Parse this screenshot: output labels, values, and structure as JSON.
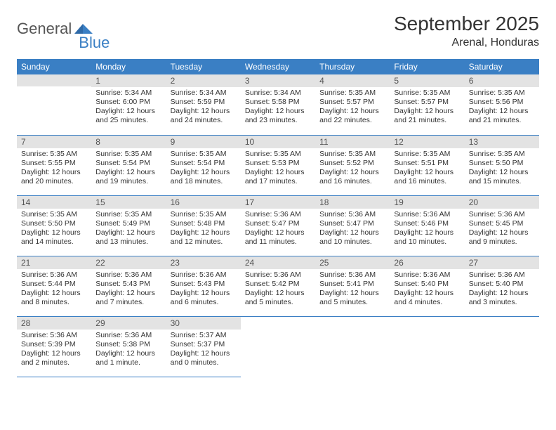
{
  "logo": {
    "text1": "General",
    "text2": "Blue"
  },
  "title": "September 2025",
  "location": "Arenal, Honduras",
  "colors": {
    "header_bg": "#3a7fc4",
    "header_text": "#ffffff",
    "daynum_bg": "#e3e3e3",
    "daynum_text": "#555555",
    "body_text": "#333333",
    "row_divider": "#3a7fc4",
    "page_bg": "#ffffff",
    "logo_gray": "#555555",
    "logo_blue": "#3a7fc4"
  },
  "typography": {
    "title_fontsize": 28,
    "location_fontsize": 16,
    "dayheader_fontsize": 12,
    "daynum_fontsize": 12,
    "body_fontsize": 10.5,
    "font_family": "Arial"
  },
  "day_headers": [
    "Sunday",
    "Monday",
    "Tuesday",
    "Wednesday",
    "Thursday",
    "Friday",
    "Saturday"
  ],
  "weeks": [
    [
      {
        "n": "",
        "sunrise": "",
        "sunset": "",
        "daylight": ""
      },
      {
        "n": "1",
        "sunrise": "Sunrise: 5:34 AM",
        "sunset": "Sunset: 6:00 PM",
        "daylight": "Daylight: 12 hours and 25 minutes."
      },
      {
        "n": "2",
        "sunrise": "Sunrise: 5:34 AM",
        "sunset": "Sunset: 5:59 PM",
        "daylight": "Daylight: 12 hours and 24 minutes."
      },
      {
        "n": "3",
        "sunrise": "Sunrise: 5:34 AM",
        "sunset": "Sunset: 5:58 PM",
        "daylight": "Daylight: 12 hours and 23 minutes."
      },
      {
        "n": "4",
        "sunrise": "Sunrise: 5:35 AM",
        "sunset": "Sunset: 5:57 PM",
        "daylight": "Daylight: 12 hours and 22 minutes."
      },
      {
        "n": "5",
        "sunrise": "Sunrise: 5:35 AM",
        "sunset": "Sunset: 5:57 PM",
        "daylight": "Daylight: 12 hours and 21 minutes."
      },
      {
        "n": "6",
        "sunrise": "Sunrise: 5:35 AM",
        "sunset": "Sunset: 5:56 PM",
        "daylight": "Daylight: 12 hours and 21 minutes."
      }
    ],
    [
      {
        "n": "7",
        "sunrise": "Sunrise: 5:35 AM",
        "sunset": "Sunset: 5:55 PM",
        "daylight": "Daylight: 12 hours and 20 minutes."
      },
      {
        "n": "8",
        "sunrise": "Sunrise: 5:35 AM",
        "sunset": "Sunset: 5:54 PM",
        "daylight": "Daylight: 12 hours and 19 minutes."
      },
      {
        "n": "9",
        "sunrise": "Sunrise: 5:35 AM",
        "sunset": "Sunset: 5:54 PM",
        "daylight": "Daylight: 12 hours and 18 minutes."
      },
      {
        "n": "10",
        "sunrise": "Sunrise: 5:35 AM",
        "sunset": "Sunset: 5:53 PM",
        "daylight": "Daylight: 12 hours and 17 minutes."
      },
      {
        "n": "11",
        "sunrise": "Sunrise: 5:35 AM",
        "sunset": "Sunset: 5:52 PM",
        "daylight": "Daylight: 12 hours and 16 minutes."
      },
      {
        "n": "12",
        "sunrise": "Sunrise: 5:35 AM",
        "sunset": "Sunset: 5:51 PM",
        "daylight": "Daylight: 12 hours and 16 minutes."
      },
      {
        "n": "13",
        "sunrise": "Sunrise: 5:35 AM",
        "sunset": "Sunset: 5:50 PM",
        "daylight": "Daylight: 12 hours and 15 minutes."
      }
    ],
    [
      {
        "n": "14",
        "sunrise": "Sunrise: 5:35 AM",
        "sunset": "Sunset: 5:50 PM",
        "daylight": "Daylight: 12 hours and 14 minutes."
      },
      {
        "n": "15",
        "sunrise": "Sunrise: 5:35 AM",
        "sunset": "Sunset: 5:49 PM",
        "daylight": "Daylight: 12 hours and 13 minutes."
      },
      {
        "n": "16",
        "sunrise": "Sunrise: 5:35 AM",
        "sunset": "Sunset: 5:48 PM",
        "daylight": "Daylight: 12 hours and 12 minutes."
      },
      {
        "n": "17",
        "sunrise": "Sunrise: 5:36 AM",
        "sunset": "Sunset: 5:47 PM",
        "daylight": "Daylight: 12 hours and 11 minutes."
      },
      {
        "n": "18",
        "sunrise": "Sunrise: 5:36 AM",
        "sunset": "Sunset: 5:47 PM",
        "daylight": "Daylight: 12 hours and 10 minutes."
      },
      {
        "n": "19",
        "sunrise": "Sunrise: 5:36 AM",
        "sunset": "Sunset: 5:46 PM",
        "daylight": "Daylight: 12 hours and 10 minutes."
      },
      {
        "n": "20",
        "sunrise": "Sunrise: 5:36 AM",
        "sunset": "Sunset: 5:45 PM",
        "daylight": "Daylight: 12 hours and 9 minutes."
      }
    ],
    [
      {
        "n": "21",
        "sunrise": "Sunrise: 5:36 AM",
        "sunset": "Sunset: 5:44 PM",
        "daylight": "Daylight: 12 hours and 8 minutes."
      },
      {
        "n": "22",
        "sunrise": "Sunrise: 5:36 AM",
        "sunset": "Sunset: 5:43 PM",
        "daylight": "Daylight: 12 hours and 7 minutes."
      },
      {
        "n": "23",
        "sunrise": "Sunrise: 5:36 AM",
        "sunset": "Sunset: 5:43 PM",
        "daylight": "Daylight: 12 hours and 6 minutes."
      },
      {
        "n": "24",
        "sunrise": "Sunrise: 5:36 AM",
        "sunset": "Sunset: 5:42 PM",
        "daylight": "Daylight: 12 hours and 5 minutes."
      },
      {
        "n": "25",
        "sunrise": "Sunrise: 5:36 AM",
        "sunset": "Sunset: 5:41 PM",
        "daylight": "Daylight: 12 hours and 5 minutes."
      },
      {
        "n": "26",
        "sunrise": "Sunrise: 5:36 AM",
        "sunset": "Sunset: 5:40 PM",
        "daylight": "Daylight: 12 hours and 4 minutes."
      },
      {
        "n": "27",
        "sunrise": "Sunrise: 5:36 AM",
        "sunset": "Sunset: 5:40 PM",
        "daylight": "Daylight: 12 hours and 3 minutes."
      }
    ],
    [
      {
        "n": "28",
        "sunrise": "Sunrise: 5:36 AM",
        "sunset": "Sunset: 5:39 PM",
        "daylight": "Daylight: 12 hours and 2 minutes."
      },
      {
        "n": "29",
        "sunrise": "Sunrise: 5:36 AM",
        "sunset": "Sunset: 5:38 PM",
        "daylight": "Daylight: 12 hours and 1 minute."
      },
      {
        "n": "30",
        "sunrise": "Sunrise: 5:37 AM",
        "sunset": "Sunset: 5:37 PM",
        "daylight": "Daylight: 12 hours and 0 minutes."
      },
      {
        "n": "",
        "sunrise": "",
        "sunset": "",
        "daylight": ""
      },
      {
        "n": "",
        "sunrise": "",
        "sunset": "",
        "daylight": ""
      },
      {
        "n": "",
        "sunrise": "",
        "sunset": "",
        "daylight": ""
      },
      {
        "n": "",
        "sunrise": "",
        "sunset": "",
        "daylight": ""
      }
    ]
  ]
}
